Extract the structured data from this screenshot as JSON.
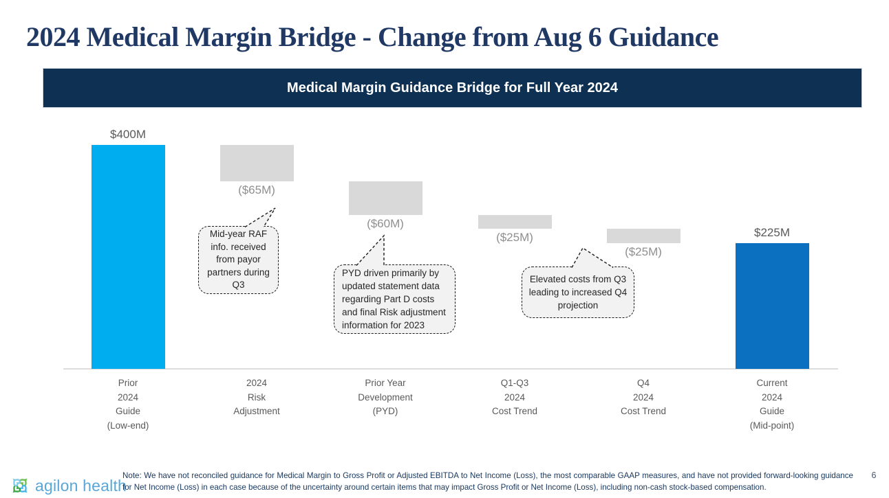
{
  "slide": {
    "title": "2024 Medical Margin Bridge - Change from Aug 6 Guidance",
    "banner": "Medical Margin Guidance Bridge for Full Year 2024",
    "page_number": "6",
    "note": "Note: We have not reconciled guidance for Medical Margin to Gross Profit or Adjusted EBITDA to Net Income (Loss), the most comparable GAAP measures, and have not provided forward-looking guidance for Net Income (Loss) in each case because of the uncertainty around certain items that may impact Gross Profit or Net Income (Loss), including non-cash stock-based compensation."
  },
  "logo": {
    "text": "agilon health"
  },
  "colors": {
    "title_navy": "#1f3864",
    "banner_bg": "#0e3052",
    "bar_cyan": "#00aeef",
    "bar_blue": "#0b70bf",
    "bar_gray": "#d9d9d9",
    "value_label_dark": "#595959",
    "value_label_gray": "#8f8f8f",
    "callout_bg": "#f2f2f2",
    "logo_blue": "#58a7d8",
    "logo_green": "#6abf4b"
  },
  "chart_data": {
    "type": "bar",
    "subtype": "waterfall",
    "title": "Medical Margin Guidance Bridge for Full Year 2024",
    "unit": "USD millions",
    "xlabel": "",
    "ylabel": "",
    "ylim": [
      0,
      400
    ],
    "grid": false,
    "legend": "none",
    "categories": [
      "Prior 2024 Guide (Low-end)",
      "2024 Risk Adjustment",
      "Prior Year Development (PYD)",
      "Q1-Q3 2024 Cost Trend",
      "Q4 2024 Cost Trend",
      "Current 2024 Guide (Mid-point)"
    ],
    "bars": [
      {
        "label_lines": "Prior\n2024\nGuide\n(Low-end)",
        "value": 400,
        "display": "$400M",
        "kind": "total",
        "color": "#00aeef",
        "start": 0,
        "end": 400
      },
      {
        "label_lines": "2024\nRisk\nAdjustment",
        "value": -65,
        "display": "($65M)",
        "kind": "decrease",
        "color": "#d9d9d9",
        "start": 400,
        "end": 335
      },
      {
        "label_lines": "Prior Year\nDevelopment\n(PYD)",
        "value": -60,
        "display": "($60M)",
        "kind": "decrease",
        "color": "#d9d9d9",
        "start": 335,
        "end": 275
      },
      {
        "label_lines": "Q1-Q3\n2024\nCost Trend",
        "value": -25,
        "display": "($25M)",
        "kind": "decrease",
        "color": "#d9d9d9",
        "start": 275,
        "end": 250
      },
      {
        "label_lines": "Q4\n2024\nCost Trend",
        "value": -25,
        "display": "($25M)",
        "kind": "decrease",
        "color": "#d9d9d9",
        "start": 250,
        "end": 225
      },
      {
        "label_lines": "Current\n2024\nGuide\n(Mid-point)",
        "value": 225,
        "display": "$225M",
        "kind": "total",
        "color": "#0b70bf",
        "start": 0,
        "end": 225
      }
    ],
    "annotations": [
      {
        "target": "2024 Risk Adjustment",
        "text": "Mid-year RAF info. received from payor partners during Q3"
      },
      {
        "target": "Prior Year Development (PYD)",
        "text": "PYD driven primarily by updated statement data regarding Part D costs and final Risk adjustment information for 2023"
      },
      {
        "target": "Q4 2024 Cost Trend",
        "text": "Elevated costs from Q3 leading to increased Q4 projection"
      }
    ]
  }
}
